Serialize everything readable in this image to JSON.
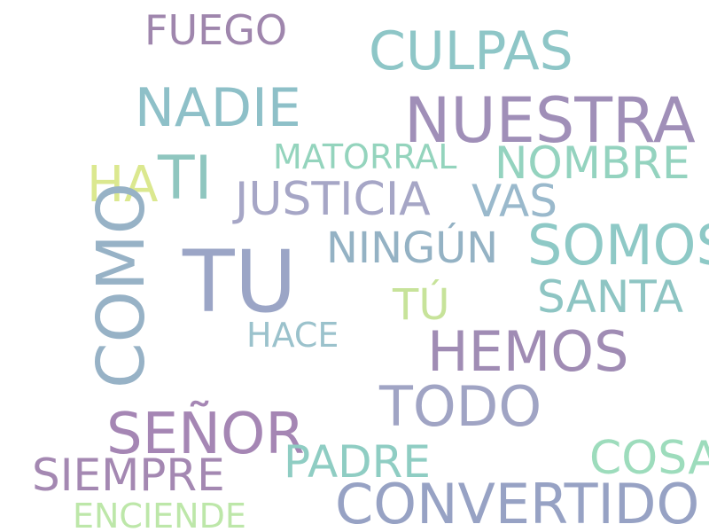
{
  "words": [
    {
      "text": "FUEGO",
      "color": "#9f86ad"
    },
    {
      "text": "CULPAS",
      "color": "#8ec6c7"
    },
    {
      "text": "NADIE",
      "color": "#8ec0c8"
    },
    {
      "text": "NUESTRA",
      "color": "#a08fb8"
    },
    {
      "text": "MATORRAL",
      "color": "#94d4bd"
    },
    {
      "text": "NOMBRE",
      "color": "#94d3bf"
    },
    {
      "text": "HA",
      "color": "#dbe88f"
    },
    {
      "text": "TI",
      "color": "#8fc6bf"
    },
    {
      "text": "JUSTICIA",
      "color": "#a6a6c6"
    },
    {
      "text": "VAS",
      "color": "#9ab9cc"
    },
    {
      "text": "NINGÚN",
      "color": "#94b2c4"
    },
    {
      "text": "SOMOS",
      "color": "#8ec9c6"
    },
    {
      "text": "COMO",
      "color": "#97b2c6"
    },
    {
      "text": "TU",
      "color": "#9ba5c6"
    },
    {
      "text": "SANTA",
      "color": "#8ec5c3"
    },
    {
      "text": "TÚ",
      "color": "#c7e39a"
    },
    {
      "text": "HACE",
      "color": "#9bc2cc"
    },
    {
      "text": "HEMOS",
      "color": "#a08cb4"
    },
    {
      "text": "TODO",
      "color": "#a0a4c4"
    },
    {
      "text": "SEÑOR",
      "color": "#a586b4"
    },
    {
      "text": "PADRE",
      "color": "#8fcdc3"
    },
    {
      "text": "COSA",
      "color": "#9ddcbc"
    },
    {
      "text": "SIEMPRE",
      "color": "#a488b2"
    },
    {
      "text": "CONVERTIDO",
      "color": "#97a2c4"
    },
    {
      "text": "ENCIENDE",
      "color": "#bde7a9"
    }
  ]
}
